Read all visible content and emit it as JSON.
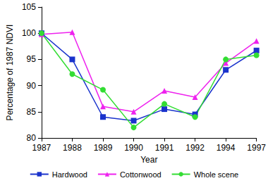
{
  "chart_data": {
    "type": "line",
    "x_label": "Year",
    "y_label": "Percentage of 1987 NDVI",
    "categories": [
      "1987",
      "1988",
      "1989",
      "1990",
      "1991",
      "1992",
      "1994",
      "1997"
    ],
    "series": [
      {
        "name": "Hardwood",
        "color": "#1a33cc",
        "marker": "square",
        "values": [
          100,
          95,
          84,
          83.3,
          85.5,
          84.5,
          93,
          96.7
        ]
      },
      {
        "name": "Cottonwood",
        "color": "#ee22ee",
        "marker": "triangle",
        "values": [
          99.8,
          100.2,
          86,
          85,
          89,
          87.8,
          94.3,
          98.5
        ]
      },
      {
        "name": "Whole scene",
        "color": "#33dd33",
        "marker": "circle",
        "values": [
          100,
          92.2,
          89.2,
          82,
          86.5,
          84,
          95,
          95.8
        ]
      }
    ],
    "ylim": [
      80,
      105
    ],
    "yticks": [
      80,
      85,
      90,
      95,
      100,
      105
    ],
    "grid": false,
    "legend": "bottom"
  }
}
